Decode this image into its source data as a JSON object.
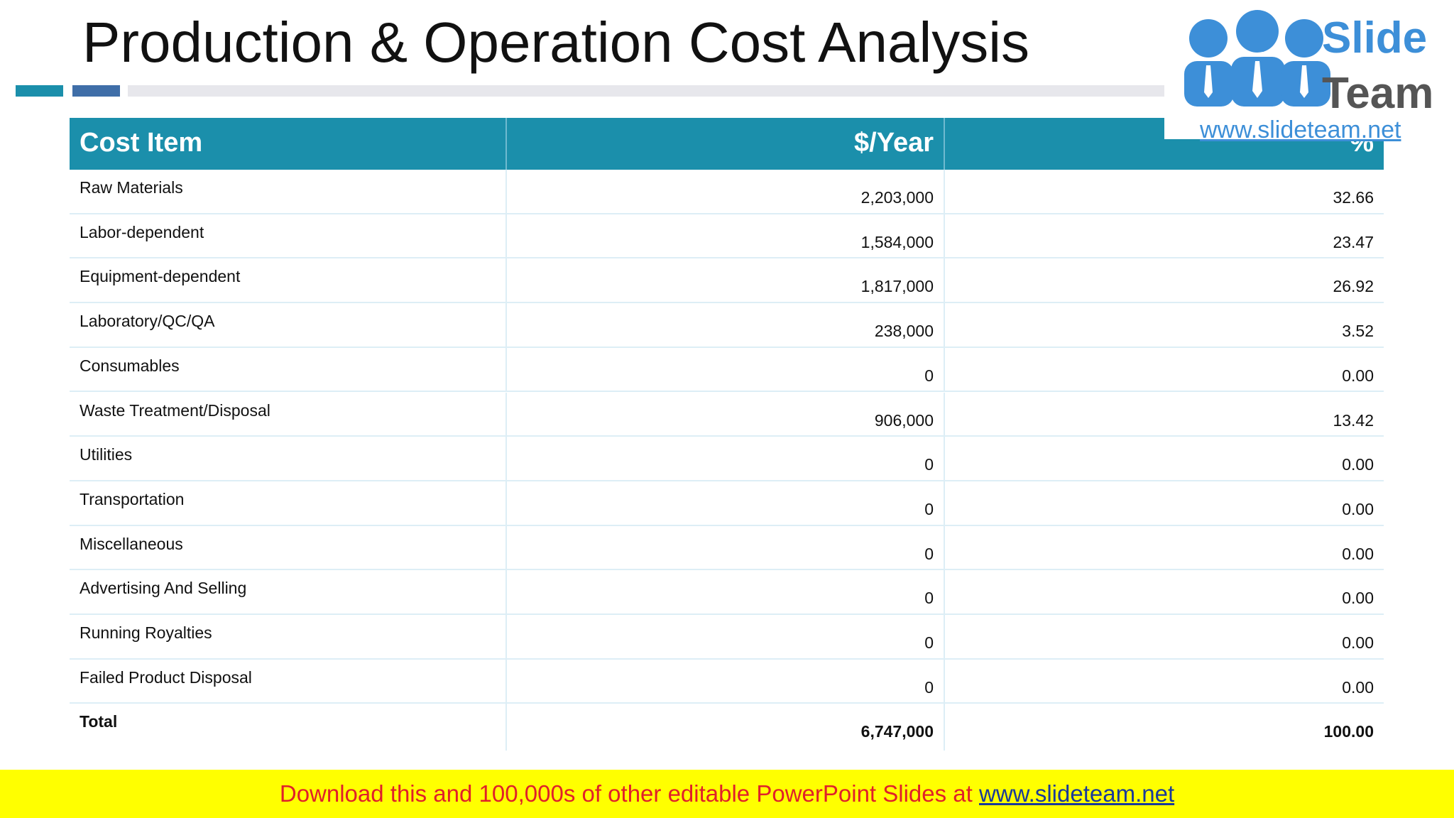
{
  "header": {
    "title": "Production & Operation Cost Analysis"
  },
  "logo": {
    "brand_top": "Slide",
    "brand_bottom": "Team",
    "url": "www.slideteam.net"
  },
  "table": {
    "columns": [
      "Cost Item",
      "$/Year",
      "%"
    ],
    "rows": [
      [
        "Raw Materials",
        "2,203,000",
        "32.66"
      ],
      [
        "Labor-dependent",
        "1,584,000",
        "23.47"
      ],
      [
        "Equipment-dependent",
        "1,817,000",
        "26.92"
      ],
      [
        "Laboratory/QC/QA",
        "238,000",
        "3.52"
      ],
      [
        "Consumables",
        "0",
        "0.00"
      ],
      [
        "Waste Treatment/Disposal",
        "906,000",
        "13.42"
      ],
      [
        "Utilities",
        "0",
        "0.00"
      ],
      [
        "Transportation",
        "0",
        "0.00"
      ],
      [
        "Miscellaneous",
        "0",
        "0.00"
      ],
      [
        "Advertising And Selling",
        "0",
        "0.00"
      ],
      [
        "Running Royalties",
        "0",
        "0.00"
      ],
      [
        "Failed Product Disposal",
        "0",
        "0.00"
      ]
    ],
    "total": [
      "Total",
      "6,747,000",
      "100.00"
    ]
  },
  "banner": {
    "text": "Download this and 100,000s of other editable PowerPoint Slides at ",
    "link": "www.slideteam.net"
  }
}
